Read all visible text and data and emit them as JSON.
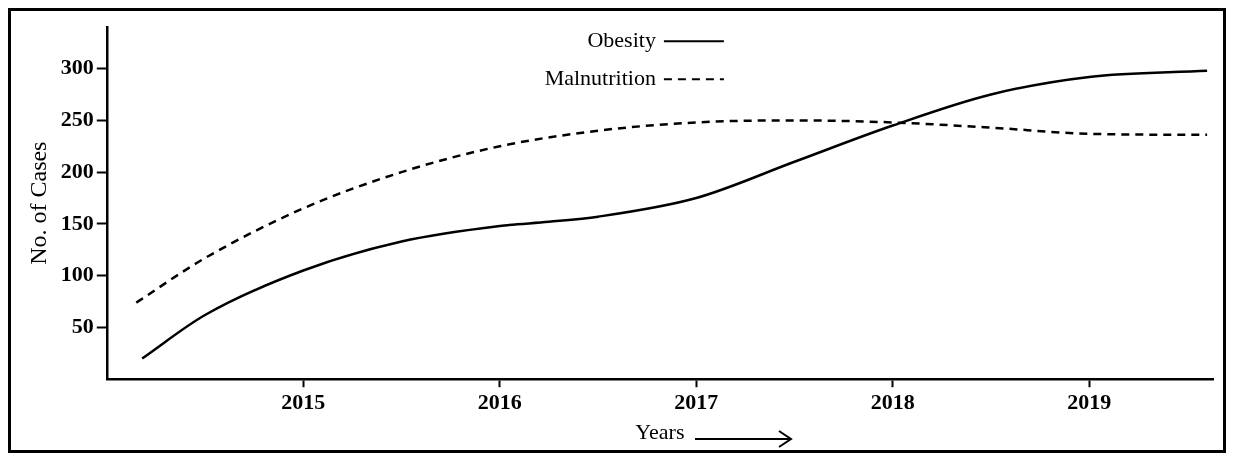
{
  "chart_data": {
    "type": "line",
    "xlabel": "Years",
    "ylabel": "No. of Cases",
    "xlim": [
      2014,
      2019.63
    ],
    "xticks": [
      2015,
      2016,
      2017,
      2018,
      2019
    ],
    "ylim": [
      0,
      340
    ],
    "yticks": [
      50,
      100,
      150,
      200,
      250,
      300
    ],
    "grid": false,
    "legend": "top",
    "marker": "none",
    "series": [
      {
        "name": "Obesity",
        "color": "#000000",
        "line_style": "solid",
        "x": [
          2014.18,
          2014.5,
          2015,
          2015.5,
          2016,
          2016.25,
          2016.5,
          2017,
          2017.5,
          2018,
          2018.5,
          2019,
          2019.6
        ],
        "values": [
          20,
          62,
          105,
          133,
          148,
          152,
          157,
          175,
          210,
          245,
          275,
          292,
          298
        ]
      },
      {
        "name": "Malnutrition",
        "color": "#000000",
        "line_style": "dashed",
        "x": [
          2014.15,
          2014.5,
          2015,
          2015.5,
          2016,
          2016.5,
          2017,
          2017.5,
          2018,
          2018.5,
          2019,
          2019.6
        ],
        "values": [
          74,
          117,
          165,
          200,
          225,
          240,
          248,
          250,
          248,
          243,
          237,
          236
        ]
      }
    ]
  }
}
